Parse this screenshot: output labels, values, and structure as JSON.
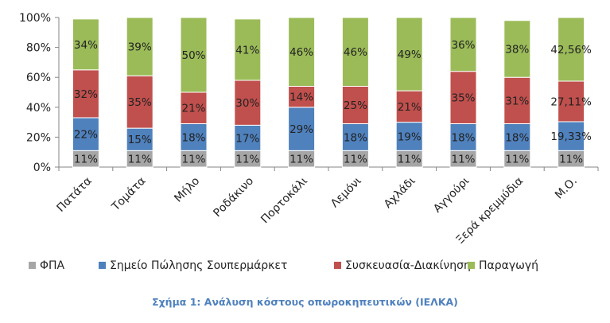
{
  "caption": "Σχήμα 1: Ανάλυση κόστους οπωροκηπευτικών (ΙΕΛΚΑ)",
  "chart_data": {
    "type": "bar",
    "stacked": true,
    "categories": [
      "Πατάτα",
      "Τομάτα",
      "Μήλο",
      "Ροδάκινο",
      "Πορτοκάλι",
      "Λεμόνι",
      "Αχλάδι",
      "Αγγούρι",
      "Ξερά κρεμμύδια",
      "Μ.Ο."
    ],
    "series": [
      {
        "name": "ΦΠΑ",
        "color": "#a6a6a6",
        "values": [
          11,
          11,
          11,
          11,
          11,
          11,
          11,
          11,
          11,
          11
        ],
        "labels": [
          "11%",
          "11%",
          "11%",
          "11%",
          "11%",
          "11%",
          "11%",
          "11%",
          "11%",
          "11%"
        ]
      },
      {
        "name": "Σημείο Πώλησης Σουπερμάρκετ",
        "color": "#4f81bd",
        "values": [
          22,
          15,
          18,
          17,
          29,
          18,
          19,
          18,
          18,
          19.33
        ],
        "labels": [
          "22%",
          "15%",
          "18%",
          "17%",
          "29%",
          "18%",
          "19%",
          "18%",
          "18%",
          "19,33%"
        ]
      },
      {
        "name": "Συσκευασία-Διακίνηση",
        "color": "#c0504d",
        "values": [
          32,
          35,
          21,
          30,
          14,
          25,
          21,
          35,
          31,
          27.11
        ],
        "labels": [
          "32%",
          "35%",
          "21%",
          "30%",
          "14%",
          "25%",
          "21%",
          "35%",
          "31%",
          "27,11%"
        ]
      },
      {
        "name": "Παραγωγή",
        "color": "#9bbb59",
        "values": [
          34,
          39,
          50,
          41,
          46,
          46,
          49,
          36,
          38,
          42.56
        ],
        "labels": [
          "34%",
          "39%",
          "50%",
          "41%",
          "46%",
          "46%",
          "49%",
          "36%",
          "38%",
          "42,56%"
        ]
      }
    ],
    "ylim": [
      0,
      100
    ],
    "yticks": [
      "0%",
      "20%",
      "40%",
      "60%",
      "80%",
      "100%"
    ],
    "legend_position": "bottom",
    "grid": false
  }
}
